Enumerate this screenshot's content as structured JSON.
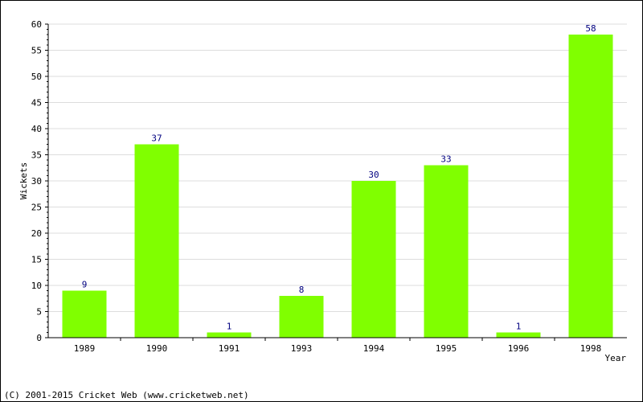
{
  "chart_data": {
    "type": "bar",
    "categories": [
      "1989",
      "1990",
      "1991",
      "1993",
      "1994",
      "1995",
      "1996",
      "1998"
    ],
    "values": [
      9,
      37,
      1,
      8,
      30,
      33,
      1,
      58
    ],
    "xlabel": "Year",
    "ylabel": "Wickets",
    "ylim": [
      0,
      60
    ],
    "yticks": [
      0,
      5,
      10,
      15,
      20,
      25,
      30,
      35,
      40,
      45,
      50,
      55,
      60
    ],
    "grid": true,
    "bar_color": "#80ff00",
    "label_color": "#000080"
  },
  "footer": "(C) 2001-2015 Cricket Web (www.cricketweb.net)"
}
